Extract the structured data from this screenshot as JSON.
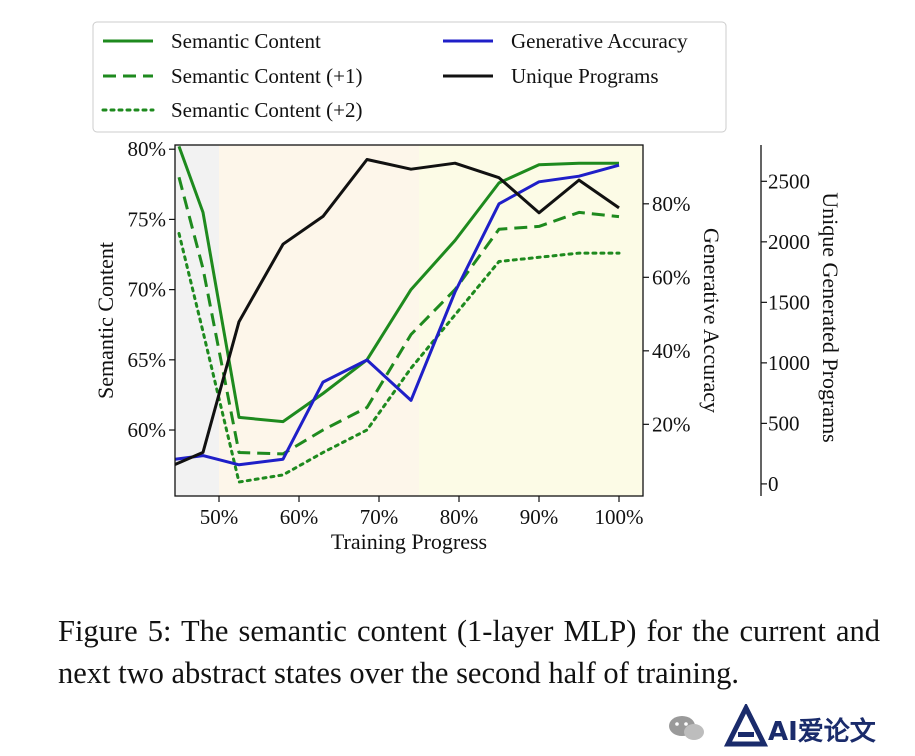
{
  "chart_data": {
    "type": "line",
    "xlabel": "Training Progress",
    "x_ticks": [
      "50%",
      "60%",
      "70%",
      "80%",
      "90%",
      "100%"
    ],
    "x_tick_values": [
      50,
      60,
      70,
      80,
      90,
      100
    ],
    "xlim": [
      44.5,
      103
    ],
    "left_axis": {
      "label": "Semantic Content",
      "ticks": [
        "60%",
        "65%",
        "70%",
        "75%",
        "80%"
      ],
      "tick_values": [
        60,
        65,
        70,
        75,
        80
      ],
      "ylim": [
        55.3,
        80.3
      ]
    },
    "right_axis_1": {
      "label": "Generative Accuracy",
      "ticks": [
        "20%",
        "40%",
        "60%",
        "80%"
      ],
      "tick_values": [
        20,
        40,
        60,
        80
      ],
      "ylim": [
        0.5,
        96
      ]
    },
    "right_axis_2": {
      "label": "Unique Generated Programs",
      "ticks": [
        "0",
        "500",
        "1000",
        "1500",
        "2000",
        "2500"
      ],
      "tick_values": [
        0,
        500,
        1000,
        1500,
        2000,
        2500
      ],
      "ylim": [
        -100,
        2800
      ]
    },
    "shaded_regions": [
      {
        "x_start": 44.5,
        "x_end": 50,
        "color": "#f2f2f2"
      },
      {
        "x_start": 50,
        "x_end": 75,
        "color": "#fdf6ea"
      },
      {
        "x_start": 75,
        "x_end": 103,
        "color": "#fcfbe6"
      }
    ],
    "series": [
      {
        "name": "Semantic Content",
        "axis": "left",
        "color": "#1e8a1e",
        "style": "solid",
        "x": [
          45,
          48,
          52.5,
          58,
          63,
          68.5,
          74,
          79.5,
          85,
          90,
          95,
          100
        ],
        "y": [
          80.2,
          75.5,
          60.9,
          60.6,
          62.6,
          65.0,
          70.0,
          73.5,
          77.6,
          78.9,
          79.0,
          79.0
        ]
      },
      {
        "name": "Semantic Content (+1)",
        "axis": "left",
        "color": "#1e8a1e",
        "style": "dashed",
        "x": [
          45,
          48,
          52.5,
          58,
          63,
          68.5,
          74,
          79.5,
          85,
          90,
          95,
          100
        ],
        "y": [
          78.0,
          71.5,
          58.4,
          58.3,
          60.0,
          61.6,
          66.8,
          70.0,
          74.3,
          74.5,
          75.5,
          75.2
        ]
      },
      {
        "name": "Semantic Content (+2)",
        "axis": "left",
        "color": "#1e8a1e",
        "style": "dotted",
        "x": [
          45,
          48,
          52.5,
          58,
          63,
          68.5,
          74,
          79.5,
          85,
          90,
          95,
          100
        ],
        "y": [
          74.0,
          67.0,
          56.3,
          56.8,
          58.4,
          60.0,
          64.4,
          68.2,
          72.0,
          72.3,
          72.6,
          72.6
        ]
      },
      {
        "name": "Generative Accuracy",
        "axis": "right1",
        "color": "#1f1fc8",
        "style": "solid",
        "x": [
          44.5,
          48,
          52.5,
          58,
          63,
          68.5,
          74,
          79.5,
          85,
          90,
          95,
          100
        ],
        "y": [
          10.5,
          11.5,
          9.0,
          10.5,
          31.5,
          37.5,
          26.5,
          56.0,
          80.0,
          86.0,
          87.5,
          90.5
        ]
      },
      {
        "name": "Unique Programs",
        "axis": "right2",
        "color": "#111111",
        "style": "solid",
        "x": [
          44.5,
          48,
          52.5,
          58,
          63,
          68.5,
          74,
          79.5,
          85,
          90,
          95,
          100
        ],
        "y": [
          160,
          260,
          1340,
          1980,
          2210,
          2680,
          2600,
          2650,
          2530,
          2240,
          2510,
          2280
        ]
      }
    ]
  },
  "caption": "Figure 5: The semantic content (1-layer MLP) for the current and next two abstract states over the second half of training.",
  "watermark": {
    "text": "AI爱论文",
    "icon": "wechat-icon"
  }
}
